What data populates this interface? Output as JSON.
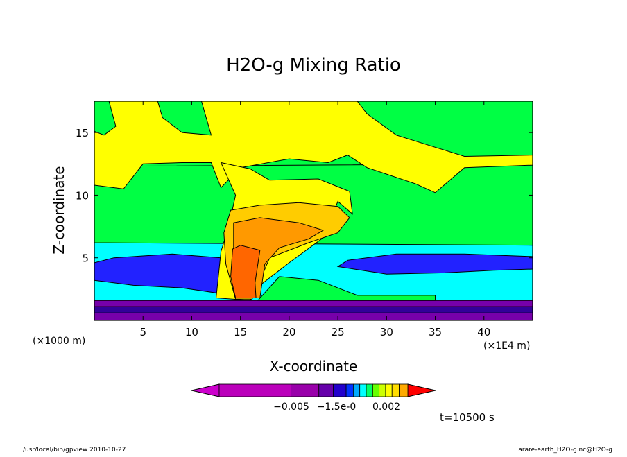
{
  "chart_data": {
    "type": "heatmap",
    "title": "H2O-g Mixing Ratio",
    "xlabel": "X-coordinate",
    "ylabel": "Z-coordinate",
    "xunit_left": "(×1000 m)",
    "xunit_right": "(×1E4 m)",
    "xlim": [
      0,
      45
    ],
    "ylim": [
      0,
      17.5
    ],
    "x_ticks": [
      5,
      10,
      15,
      20,
      25,
      30,
      35,
      40
    ],
    "y_ticks": [
      5,
      10,
      15
    ],
    "x_tick_labels": [
      "5",
      "10",
      "15",
      "20",
      "25",
      "30",
      "35",
      "40"
    ],
    "y_tick_labels": [
      "5",
      "10",
      "15"
    ],
    "time_label": "t=10500 s",
    "colorbar_labels": [
      "−0.005",
      "−1.5e-0",
      "0.002"
    ],
    "colorbar_colors": [
      "#cc00cc",
      "#bb00bb",
      "#9900aa",
      "#6600aa",
      "#2200cc",
      "#0033ff",
      "#00aaff",
      "#00ffff",
      "#00ff66",
      "#66ff00",
      "#ccff00",
      "#ffff00",
      "#ffdd00",
      "#ffaa00",
      "#ff7700",
      "#ff0000"
    ],
    "regions": [
      {
        "name": "surface-purple-layer",
        "color": "#7700aa",
        "points": [
          [
            0,
            0
          ],
          [
            45,
            0
          ],
          [
            45,
            1.6
          ],
          [
            0,
            1.6
          ]
        ]
      },
      {
        "name": "surface-dark-band",
        "color": "#330099",
        "points": [
          [
            0,
            0.6
          ],
          [
            45,
            0.6
          ],
          [
            45,
            1.1
          ],
          [
            0,
            1.1
          ]
        ]
      },
      {
        "name": "cyan-layer",
        "color": "#00ffff",
        "points": [
          [
            0,
            1.6
          ],
          [
            45,
            1.6
          ],
          [
            45,
            6.2
          ],
          [
            0,
            6.2
          ]
        ]
      },
      {
        "name": "blue-layer-left",
        "color": "#2222ff",
        "points": [
          [
            0,
            3.2
          ],
          [
            4,
            2.8
          ],
          [
            9,
            2.6
          ],
          [
            12.5,
            2.2
          ],
          [
            13.8,
            3.5
          ],
          [
            13,
            5.0
          ],
          [
            8,
            5.3
          ],
          [
            2,
            5.0
          ],
          [
            0,
            4.6
          ]
        ]
      },
      {
        "name": "blue-layer-right",
        "color": "#2222ff",
        "points": [
          [
            25,
            4.3
          ],
          [
            30,
            3.7
          ],
          [
            36,
            3.8
          ],
          [
            41,
            4.0
          ],
          [
            45,
            4.1
          ],
          [
            45,
            5.1
          ],
          [
            38,
            5.3
          ],
          [
            31,
            5.3
          ],
          [
            26,
            4.8
          ]
        ]
      },
      {
        "name": "green-mid",
        "color": "#00ff44",
        "points": [
          [
            0,
            6.2
          ],
          [
            45,
            6.0
          ],
          [
            45,
            12.5
          ],
          [
            0,
            12.3
          ]
        ]
      },
      {
        "name": "green-lower-bumps",
        "color": "#00ff44",
        "points": [
          [
            16.8,
            1.6
          ],
          [
            21,
            1.6
          ],
          [
            26,
            1.6
          ],
          [
            35,
            1.6
          ],
          [
            35,
            2.0
          ],
          [
            27,
            2.0
          ],
          [
            23,
            3.2
          ],
          [
            19,
            3.5
          ]
        ]
      },
      {
        "name": "yellow-upper-band",
        "color": "#ffff00",
        "points": [
          [
            0,
            17.5
          ],
          [
            45,
            17.5
          ],
          [
            45,
            12.4
          ],
          [
            38,
            12.2
          ],
          [
            35,
            10.2
          ],
          [
            33,
            10.9
          ],
          [
            28,
            12.2
          ],
          [
            26,
            13.2
          ],
          [
            24,
            12.6
          ],
          [
            20,
            12.9
          ],
          [
            15,
            12.2
          ],
          [
            13,
            10.6
          ],
          [
            12,
            12.6
          ],
          [
            9,
            12.6
          ],
          [
            5,
            12.5
          ],
          [
            3,
            10.5
          ],
          [
            0,
            10.8
          ]
        ]
      },
      {
        "name": "green-top-patch-left",
        "color": "#00ff44",
        "points": [
          [
            0,
            17.5
          ],
          [
            1.5,
            17.5
          ],
          [
            2.2,
            15.5
          ],
          [
            1,
            14.8
          ],
          [
            0,
            15.1
          ]
        ]
      },
      {
        "name": "green-top-patch-mid",
        "color": "#00ff44",
        "points": [
          [
            6.5,
            17.5
          ],
          [
            11,
            17.5
          ],
          [
            12,
            14.8
          ],
          [
            9,
            15.0
          ],
          [
            7,
            16.2
          ]
        ]
      },
      {
        "name": "green-top-patch-right",
        "color": "#00ff44",
        "points": [
          [
            27,
            17.5
          ],
          [
            45,
            17.5
          ],
          [
            45,
            13.2
          ],
          [
            38,
            13.1
          ],
          [
            31,
            14.8
          ],
          [
            28,
            16.5
          ]
        ]
      },
      {
        "name": "yellow-anvil",
        "color": "#ffff00",
        "points": [
          [
            13,
            12.6
          ],
          [
            14.5,
            10.0
          ],
          [
            13.8,
            7.5
          ],
          [
            13,
            5.5
          ],
          [
            12.5,
            1.8
          ],
          [
            16,
            1.6
          ],
          [
            17,
            2.8
          ],
          [
            20,
            4.6
          ],
          [
            23.5,
            6.6
          ],
          [
            25,
            9.5
          ],
          [
            26.5,
            8.5
          ],
          [
            26.2,
            10.3
          ],
          [
            23,
            11.3
          ],
          [
            18,
            11.2
          ],
          [
            16,
            12.1
          ]
        ]
      },
      {
        "name": "gold-anvil",
        "color": "#ffcc00",
        "points": [
          [
            14,
            8.8
          ],
          [
            17,
            9.2
          ],
          [
            21,
            9.4
          ],
          [
            25,
            9.1
          ],
          [
            26.2,
            8.2
          ],
          [
            25,
            7.0
          ],
          [
            22,
            6.2
          ],
          [
            18,
            5.0
          ],
          [
            16.2,
            1.7
          ],
          [
            14.5,
            1.7
          ],
          [
            13.5,
            4.5
          ],
          [
            13.3,
            7.0
          ]
        ]
      },
      {
        "name": "orange-core",
        "color": "#ff9900",
        "points": [
          [
            14.3,
            7.8
          ],
          [
            17,
            8.2
          ],
          [
            21,
            7.8
          ],
          [
            23.5,
            7.2
          ],
          [
            22,
            6.5
          ],
          [
            19,
            5.8
          ],
          [
            17.5,
            4.5
          ],
          [
            17,
            1.8
          ],
          [
            15,
            1.8
          ],
          [
            14.3,
            4.5
          ]
        ]
      },
      {
        "name": "dark-orange-core",
        "color": "#ff6600",
        "points": [
          [
            14.2,
            5.7
          ],
          [
            15,
            6.0
          ],
          [
            17,
            5.6
          ],
          [
            16.5,
            3.0
          ],
          [
            16.6,
            1.8
          ],
          [
            14.5,
            1.8
          ],
          [
            14.0,
            3.5
          ]
        ]
      }
    ]
  },
  "footer": {
    "left": "/usr/local/bin/gpview   2010-10-27",
    "right": "arare-earth_H2O-g.nc@H2O-g"
  }
}
